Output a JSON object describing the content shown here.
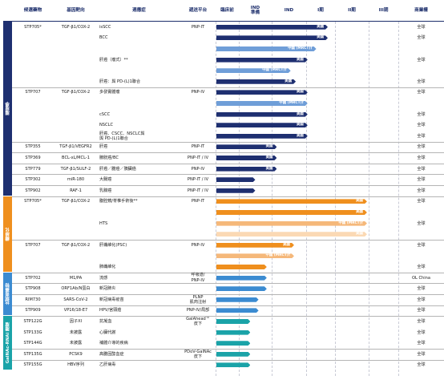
{
  "chart_data": {
    "type": "table",
    "headers": {
      "candidate": "候選藥物",
      "target": "基因靶向",
      "indication": "適應症",
      "platform": "遞送平台",
      "preclinical": "臨床前",
      "ind_prep": "IND\n準備",
      "ind": "IND",
      "phase1": "I期",
      "phase2": "II期",
      "phase3": "III期",
      "rights": "商業權"
    },
    "stages": [
      "臨床前",
      "IND準備",
      "IND",
      "I期",
      "II期",
      "III期"
    ],
    "categories": [
      {
        "label": "腫瘤學",
        "color": "#1e2f70"
      },
      {
        "label": "纖維化",
        "color": "#ef8f1e"
      },
      {
        "label": "抗病毒藥物",
        "color": "#3b8bd1"
      },
      {
        "label": "GalNAc-RNAi 腫瘤",
        "color": "#1aa3a8"
      }
    ],
    "rows": [
      {
        "candidate": "STP705*",
        "target": "TGF-β1/COX-2",
        "indication": "isSCC",
        "platform": "PNP-IT",
        "rights": "全球",
        "bar": {
          "stage": 3.75,
          "color": "#1e2f70",
          "label": "美國"
        }
      },
      {
        "candidate": "",
        "target": "",
        "indication": "BCC",
        "platform": "",
        "rights": "全球",
        "bar": {
          "stage": 3.75,
          "color": "#1e2f70",
          "label": "美國"
        }
      },
      {
        "candidate": "",
        "target": "",
        "indication": "",
        "platform": "",
        "rights": "",
        "bar": {
          "stage": 3.35,
          "color": "#6f9ed8",
          "label": "中國 (MRCT)†"
        }
      },
      {
        "candidate": "",
        "target": "",
        "indication": "肝癌（瘤式）**",
        "platform": "",
        "rights": "全球",
        "bar": {
          "stage": 3.05,
          "color": "#1e2f70",
          "label": "美國"
        }
      },
      {
        "candidate": "",
        "target": "",
        "indication": "",
        "platform": "",
        "rights": "",
        "bar": {
          "stage": 2.55,
          "color": "#6f9ed8",
          "label": "中國 (MRCT)†"
        }
      },
      {
        "candidate": "",
        "target": "",
        "indication": "肝癌：與 PD-(L)1聯合",
        "platform": "",
        "rights": "全球",
        "bar": {
          "stage": 2.7,
          "color": "#1e2f70",
          "label": "美國"
        }
      },
      {
        "candidate": "STP707",
        "target": "TGF-β1/COX-2",
        "indication": "多發實體瘤",
        "platform": "PNP-IV",
        "rights": "全球",
        "bar": {
          "stage": 3.05,
          "color": "#1e2f70",
          "label": "美國"
        }
      },
      {
        "candidate": "",
        "target": "",
        "indication": "",
        "platform": "",
        "rights": "",
        "bar": {
          "stage": 3.05,
          "color": "#6f9ed8",
          "label": "中國 (MRCT)†"
        }
      },
      {
        "candidate": "",
        "target": "",
        "indication": "cSCC",
        "platform": "",
        "rights": "全球",
        "bar": {
          "stage": 3.05,
          "color": "#1e2f70",
          "label": "美國"
        }
      },
      {
        "candidate": "",
        "target": "",
        "indication": "NSCLC",
        "platform": "",
        "rights": "全球",
        "bar": {
          "stage": 3.05,
          "color": "#1e2f70",
          "label": "美國"
        }
      },
      {
        "candidate": "",
        "target": "",
        "indication": "肝癌、CSCC、NSCLC與\n與 PD-(L)1聯合",
        "platform": "",
        "rights": "全球",
        "bar": {
          "stage": 3.05,
          "color": "#1e2f70",
          "label": "美國"
        }
      },
      {
        "candidate": "STP355",
        "target": "TGF-β1/VEGFR2",
        "indication": "肝癌",
        "platform": "PNP-IT",
        "rights": "全球",
        "bar": {
          "stage": 2.15,
          "color": "#1e2f70",
          "label": "美國"
        }
      },
      {
        "candidate": "STP369",
        "target": "BCL-xL/MCL-1",
        "indication": "膀胱癌/BC",
        "platform": "PNP-IT / IV",
        "rights": "全球",
        "bar": {
          "stage": 2.15,
          "color": "#1e2f70",
          "label": "美國"
        }
      },
      {
        "candidate": "STP779",
        "target": "TGF-β1/SULF-2",
        "indication": "肝癌／膽癌／胰臟癌",
        "platform": "PNP-IV",
        "rights": "全球",
        "bar": {
          "stage": 2.15,
          "color": "#1e2f70",
          "label": "美國"
        }
      },
      {
        "candidate": "STP302",
        "target": "miR-180",
        "indication": "大腸癌",
        "platform": "PNP-IT / IV",
        "rights": "全球",
        "bar": {
          "stage": 1.5,
          "color": "#1e2f70",
          "label": ""
        }
      },
      {
        "candidate": "STP902",
        "target": "RAF-1",
        "indication": "乳腺癌",
        "platform": "PNP-IT / IV",
        "rights": "全球",
        "bar": {
          "stage": 1.5,
          "color": "#1e2f70",
          "label": ""
        }
      },
      {
        "candidate": "STP705*",
        "target": "TGF-β1/COX-2",
        "indication": "腹腔鏡/脊椎手術後**",
        "platform": "PNP-IT",
        "rights": "全球",
        "bar": {
          "stage": 4.95,
          "color": "#ef8f1e",
          "label": "美國"
        }
      },
      {
        "candidate": "",
        "target": "",
        "indication": "",
        "platform": "",
        "rights": "",
        "bar": {
          "stage": 4.95,
          "color": "#ef8f1e",
          "label": "美國"
        }
      },
      {
        "candidate": "",
        "target": "",
        "indication": "HTS",
        "platform": "",
        "rights": "全球",
        "bar": {
          "stage": 4.95,
          "color": "#f5b87a",
          "label": "中國 (MRCT)†"
        }
      },
      {
        "candidate": "",
        "target": "",
        "indication": "",
        "platform": "",
        "rights": "",
        "bar": {
          "stage": 4.95,
          "color": "#fbd9b4",
          "label": "美國"
        }
      },
      {
        "candidate": "STP707",
        "target": "TGF-β1/COX-2",
        "indication": "肝纖維化(PSC)",
        "platform": "PNP-IV",
        "rights": "全球",
        "bar": {
          "stage": 2.65,
          "color": "#ef8f1e",
          "label": "美國"
        }
      },
      {
        "candidate": "",
        "target": "",
        "indication": "",
        "platform": "",
        "rights": "",
        "bar": {
          "stage": 2.65,
          "color": "#f5b87a",
          "label": "中國 (MRCT)†"
        }
      },
      {
        "candidate": "",
        "target": "",
        "indication": "肺纖維化",
        "platform": "",
        "rights": "全球",
        "bar": {
          "stage": 1.85,
          "color": "#ef8f1e",
          "label": ""
        }
      },
      {
        "candidate": "STP702",
        "target": "M1/PA",
        "indication": "流感",
        "platform": "呼吸道/\nPNP-IV",
        "rights": "OL China",
        "bar": {
          "stage": 1.85,
          "color": "#3b8bd1",
          "label": ""
        }
      },
      {
        "candidate": "STP908",
        "target": "ORF1Ab/N蛋白",
        "indication": "新冠肺炎",
        "platform": "",
        "rights": "全球",
        "bar": {
          "stage": 1.85,
          "color": "#3b8bd1",
          "label": ""
        }
      },
      {
        "candidate": "RIM730",
        "target": "SARS-CoV-2",
        "indication": "新冠病毒疫苗",
        "platform": "PLNP\n肌肉注射",
        "rights": "全球",
        "bar": {
          "stage": 1.6,
          "color": "#3b8bd1",
          "label": ""
        }
      },
      {
        "candidate": "STP909",
        "target": "VP16/18-E7",
        "indication": "HPV/宮頸癌",
        "platform": "PNP-IV/局部",
        "rights": "全球",
        "bar": {
          "stage": 1.6,
          "color": "#3b8bd1",
          "label": ""
        }
      },
      {
        "candidate": "STP122G",
        "target": "因子XI",
        "indication": "抗凝血",
        "platform": "GalAhead™\n皮下",
        "rights": "全球",
        "bar": {
          "stage": 1.35,
          "color": "#1aa3a8",
          "label": ""
        }
      },
      {
        "candidate": "STP133G",
        "target": "未披露",
        "indication": "心臟代謝",
        "platform": "",
        "rights": "全球",
        "bar": {
          "stage": 1.35,
          "color": "#1aa3a8",
          "label": ""
        }
      },
      {
        "candidate": "STP144G",
        "target": "未披露",
        "indication": "補體介導的疾病",
        "platform": "",
        "rights": "全球",
        "bar": {
          "stage": 1.35,
          "color": "#1aa3a8",
          "label": ""
        }
      },
      {
        "candidate": "STP135G",
        "target": "PCSK9",
        "indication": "高膽固醇血症",
        "platform": "PDoV-GalNAc\n皮下",
        "rights": "全球",
        "bar": {
          "stage": 1.35,
          "color": "#1aa3a8",
          "label": ""
        }
      },
      {
        "candidate": "STP155G",
        "target": "HBV序列",
        "indication": "乙肝病毒",
        "platform": "",
        "rights": "全球",
        "bar": {
          "stage": 1.35,
          "color": "#1aa3a8",
          "label": ""
        }
      }
    ]
  }
}
